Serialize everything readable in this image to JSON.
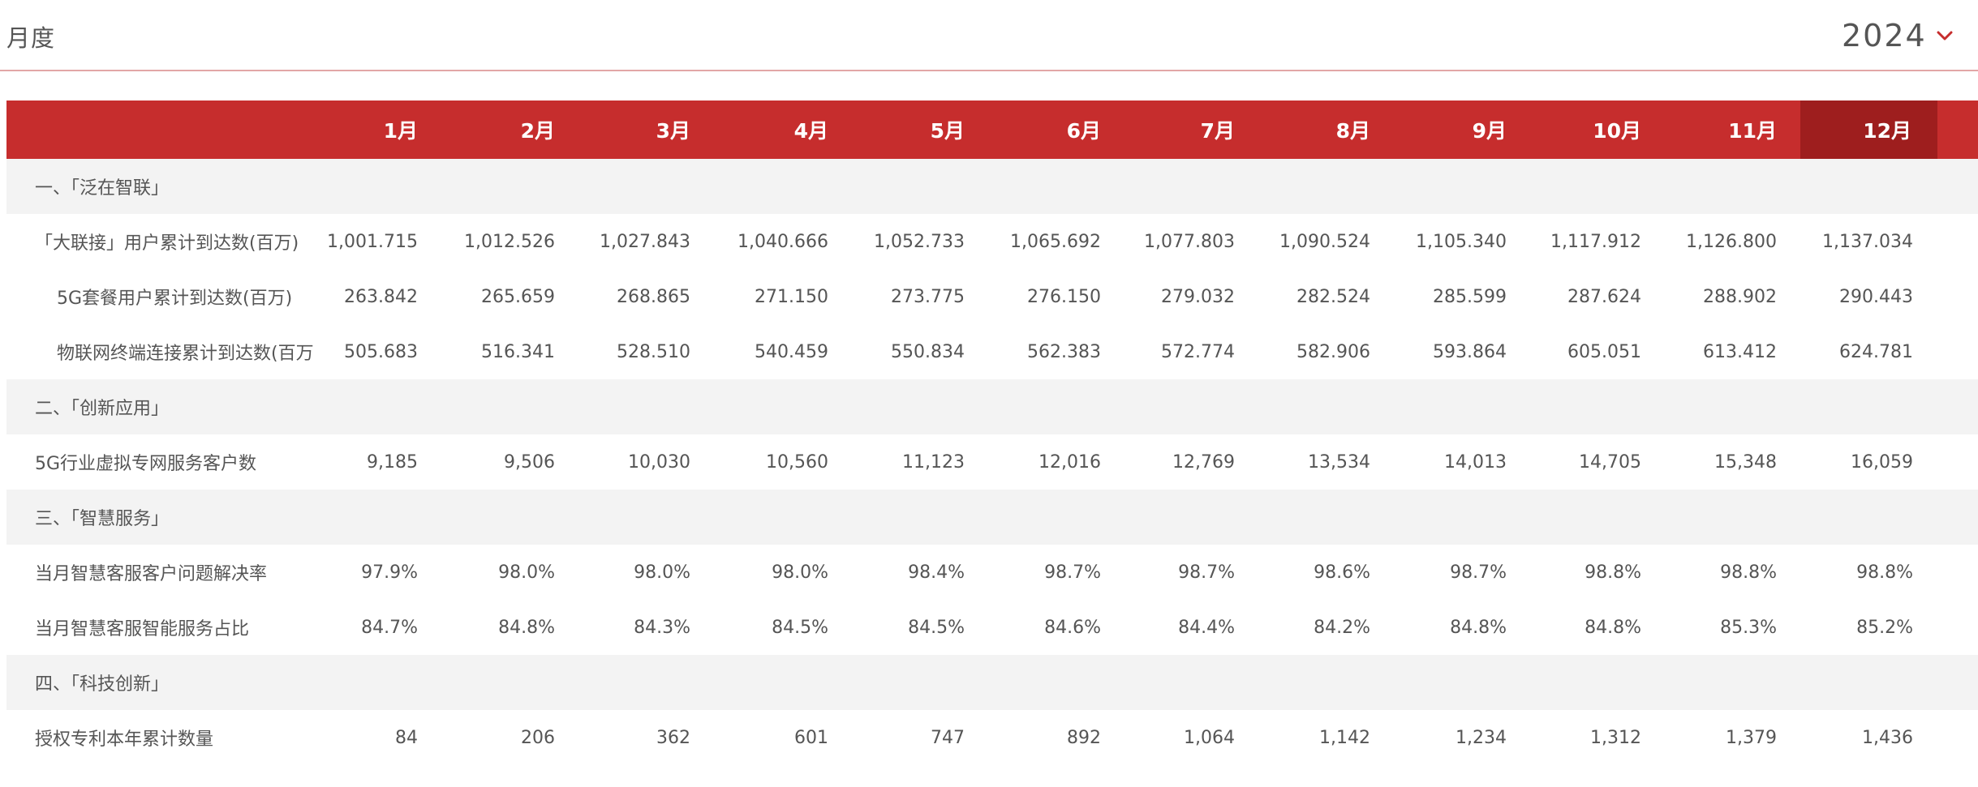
{
  "header": {
    "title": "月度",
    "year": "2024",
    "year_dropdown_icon": "chevron-down-icon",
    "accent_color": "#c62d2d"
  },
  "table": {
    "columns": [
      "1月",
      "2月",
      "3月",
      "4月",
      "5月",
      "6月",
      "7月",
      "8月",
      "9月",
      "10月",
      "11月",
      "12月"
    ],
    "highlighted_column": "12月",
    "rows": [
      {
        "type": "section",
        "label": "一、「泛在智联」",
        "values": []
      },
      {
        "type": "data",
        "level": 1,
        "label": "「大联接」用户累计到达数(百万)",
        "values": [
          "1,001.715",
          "1,012.526",
          "1,027.843",
          "1,040.666",
          "1,052.733",
          "1,065.692",
          "1,077.803",
          "1,090.524",
          "1,105.340",
          "1,117.912",
          "1,126.800",
          "1,137.034"
        ]
      },
      {
        "type": "data",
        "level": 2,
        "label": "5G套餐用户累计到达数(百万)",
        "values": [
          "263.842",
          "265.659",
          "268.865",
          "271.150",
          "273.775",
          "276.150",
          "279.032",
          "282.524",
          "285.599",
          "287.624",
          "288.902",
          "290.443"
        ]
      },
      {
        "type": "data",
        "level": 2,
        "label": "物联网终端连接累计到达数(百万",
        "values": [
          "505.683",
          "516.341",
          "528.510",
          "540.459",
          "550.834",
          "562.383",
          "572.774",
          "582.906",
          "593.864",
          "605.051",
          "613.412",
          "624.781"
        ]
      },
      {
        "type": "section",
        "label": "二、「创新应用」",
        "values": []
      },
      {
        "type": "data",
        "level": 1,
        "label": "5G行业虚拟专网服务客户数",
        "values": [
          "9,185",
          "9,506",
          "10,030",
          "10,560",
          "11,123",
          "12,016",
          "12,769",
          "13,534",
          "14,013",
          "14,705",
          "15,348",
          "16,059"
        ]
      },
      {
        "type": "section",
        "label": "三、「智慧服务」",
        "values": []
      },
      {
        "type": "data",
        "level": 1,
        "label": "当月智慧客服客户问题解决率",
        "values": [
          "97.9%",
          "98.0%",
          "98.0%",
          "98.0%",
          "98.4%",
          "98.7%",
          "98.7%",
          "98.6%",
          "98.7%",
          "98.8%",
          "98.8%",
          "98.8%"
        ]
      },
      {
        "type": "data",
        "level": 1,
        "label": "当月智慧客服智能服务占比",
        "values": [
          "84.7%",
          "84.8%",
          "84.3%",
          "84.5%",
          "84.5%",
          "84.6%",
          "84.4%",
          "84.2%",
          "84.8%",
          "84.8%",
          "85.3%",
          "85.2%"
        ]
      },
      {
        "type": "section",
        "label": "四、「科技创新」",
        "values": []
      },
      {
        "type": "data",
        "level": 1,
        "label": "授权专利本年累计数量",
        "values": [
          "84",
          "206",
          "362",
          "601",
          "747",
          "892",
          "1,064",
          "1,142",
          "1,234",
          "1,312",
          "1,379",
          "1,436"
        ]
      }
    ]
  }
}
